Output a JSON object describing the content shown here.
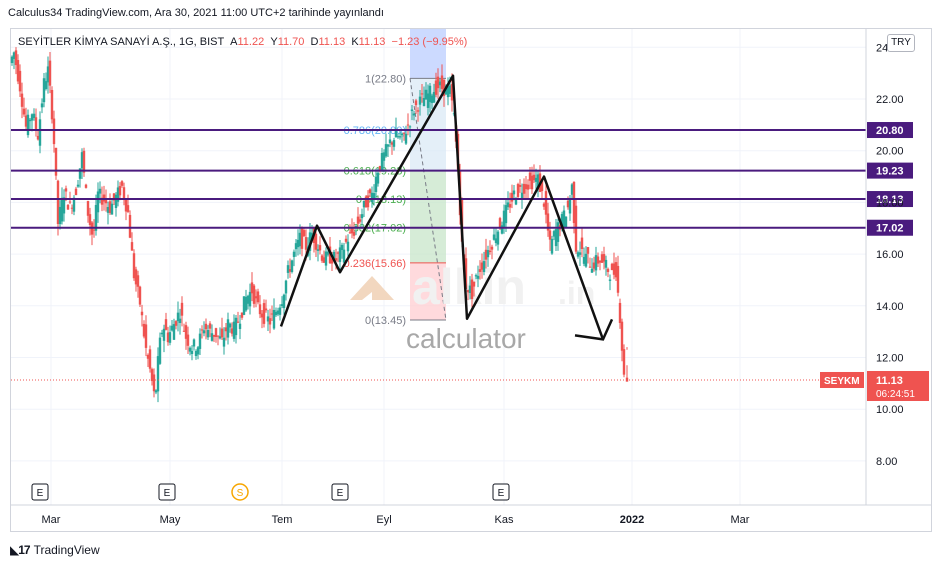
{
  "header": {
    "text": "Calculus34 TradingView.com, Ara 30, 2021 11:00 UTC+2 tarihinde yayınlandı"
  },
  "legend": {
    "symbol": "SEYİTLER KİMYA SANAYİ A.Ş., 1G, BIST",
    "o_label": "A",
    "o_value": "11.22",
    "h_label": "Y",
    "h_value": "11.70",
    "l_label": "D",
    "l_value": "11.13",
    "c_label": "K",
    "c_value": "11.13",
    "change": "−1.23 (−9.95%)"
  },
  "currency": "TRY",
  "ticker": "SEYKM",
  "countdown": "06:24:51",
  "watermark": {
    "brand": "alkin",
    "tld": ".in",
    "sub": "calculator"
  },
  "footer": {
    "brand": "TradingView"
  },
  "colors": {
    "up": "#26a69a",
    "down": "#ef5350",
    "level": "#4a1b7e",
    "fib_top": "#c7d6ff",
    "fib_mid": "#dbe9f5",
    "fib_green": "#c8e6c9",
    "fib_red": "#ffcdd2"
  },
  "chart_data": {
    "type": "candlestick",
    "symbol": "SEYKM",
    "y_range": [
      6.8,
      24.6
    ],
    "y_ticks": [
      "8.00",
      "10.00",
      "12.00",
      "14.00",
      "16.00",
      "18.00",
      "20.00",
      "22.00",
      "24.00"
    ],
    "x_labels": [
      "Mar",
      "May",
      "Tem",
      "Eyl",
      "Kas",
      "2022",
      "Mar"
    ],
    "x_label_days": [
      51,
      170,
      282,
      384,
      504,
      632,
      740
    ],
    "last_price": "11.13",
    "horizontal_levels": [
      "20.80",
      "19.23",
      "18.13",
      "17.02"
    ],
    "fibonacci": {
      "labels": [
        "1(22.80)",
        "0.786(20.80)",
        "0.618(19.23)",
        "0.5(18.13)",
        "0.382(17.02)",
        "0.236(15.66)",
        "0(13.45)"
      ],
      "values": [
        22.8,
        20.8,
        19.23,
        18.13,
        17.02,
        15.66,
        13.45
      ]
    },
    "pattern_path": [
      [
        281,
        13.2
      ],
      [
        317,
        17.1
      ],
      [
        340,
        15.3
      ],
      [
        453,
        22.9
      ],
      [
        467,
        13.5
      ],
      [
        544,
        19.0
      ],
      [
        603,
        12.7
      ]
    ],
    "events": [
      {
        "label": "E",
        "day": 40
      },
      {
        "label": "E",
        "day": 167
      },
      {
        "label": "S",
        "day": 240
      },
      {
        "label": "E",
        "day": 340
      },
      {
        "label": "E",
        "day": 501
      }
    ],
    "price_path": [
      [
        12,
        23.4
      ],
      [
        16,
        23.8
      ],
      [
        22,
        22.5
      ],
      [
        28,
        20.9
      ],
      [
        34,
        21.5
      ],
      [
        40,
        20.6
      ],
      [
        46,
        22.6
      ],
      [
        50,
        23.1
      ],
      [
        55,
        21.1
      ],
      [
        60,
        17.2
      ],
      [
        66,
        18.4
      ],
      [
        72,
        17.8
      ],
      [
        78,
        18.5
      ],
      [
        84,
        19.8
      ],
      [
        90,
        17.6
      ],
      [
        95,
        16.6
      ],
      [
        100,
        18.3
      ],
      [
        106,
        18.1
      ],
      [
        112,
        17.8
      ],
      [
        118,
        18.2
      ],
      [
        124,
        18.6
      ],
      [
        130,
        17.6
      ],
      [
        136,
        15.2
      ],
      [
        142,
        14.1
      ],
      [
        148,
        12.3
      ],
      [
        153,
        11.3
      ],
      [
        157,
        10.3
      ],
      [
        161,
        12.3
      ],
      [
        165,
        13.3
      ],
      [
        170,
        12.8
      ],
      [
        176,
        13.3
      ],
      [
        182,
        13.8
      ],
      [
        188,
        12.8
      ],
      [
        194,
        12.4
      ],
      [
        200,
        12.5
      ],
      [
        206,
        13.2
      ],
      [
        212,
        13.0
      ],
      [
        218,
        12.9
      ],
      [
        224,
        12.6
      ],
      [
        230,
        13.3
      ],
      [
        236,
        13.1
      ],
      [
        242,
        13.6
      ],
      [
        248,
        14.3
      ],
      [
        254,
        14.6
      ],
      [
        260,
        13.9
      ],
      [
        266,
        13.6
      ],
      [
        272,
        13.4
      ],
      [
        278,
        13.8
      ],
      [
        284,
        14.3
      ],
      [
        290,
        15.3
      ],
      [
        296,
        16.0
      ],
      [
        302,
        16.6
      ],
      [
        308,
        16.3
      ],
      [
        314,
        16.8
      ],
      [
        320,
        16.3
      ],
      [
        326,
        15.8
      ],
      [
        332,
        15.9
      ],
      [
        338,
        15.8
      ],
      [
        344,
        16.1
      ],
      [
        350,
        16.6
      ],
      [
        356,
        16.9
      ],
      [
        362,
        17.4
      ],
      [
        368,
        18.0
      ],
      [
        374,
        18.3
      ],
      [
        380,
        19.3
      ],
      [
        386,
        19.8
      ],
      [
        392,
        20.3
      ],
      [
        398,
        20.6
      ],
      [
        404,
        20.4
      ],
      [
        410,
        21.0
      ],
      [
        416,
        21.6
      ],
      [
        422,
        21.9
      ],
      [
        428,
        22.1
      ],
      [
        434,
        22.3
      ],
      [
        440,
        22.5
      ],
      [
        446,
        22.4
      ],
      [
        452,
        22.3
      ],
      [
        456,
        21.3
      ],
      [
        460,
        19.3
      ],
      [
        464,
        16.3
      ],
      [
        468,
        14.8
      ],
      [
        474,
        14.5
      ],
      [
        480,
        15.3
      ],
      [
        486,
        15.8
      ],
      [
        492,
        16.3
      ],
      [
        498,
        16.8
      ],
      [
        504,
        17.3
      ],
      [
        510,
        17.8
      ],
      [
        516,
        18.3
      ],
      [
        522,
        18.5
      ],
      [
        528,
        18.7
      ],
      [
        534,
        18.8
      ],
      [
        540,
        18.9
      ],
      [
        546,
        18.0
      ],
      [
        552,
        16.3
      ],
      [
        558,
        16.9
      ],
      [
        564,
        17.3
      ],
      [
        570,
        17.8
      ],
      [
        574,
        18.6
      ],
      [
        578,
        16.3
      ],
      [
        582,
        16.2
      ],
      [
        586,
        15.9
      ],
      [
        590,
        15.8
      ],
      [
        594,
        15.6
      ],
      [
        598,
        15.7
      ],
      [
        602,
        15.8
      ],
      [
        606,
        15.6
      ],
      [
        610,
        15.4
      ],
      [
        614,
        15.2
      ],
      [
        618,
        15.4
      ],
      [
        622,
        13.6
      ],
      [
        626,
        11.2
      ]
    ]
  }
}
